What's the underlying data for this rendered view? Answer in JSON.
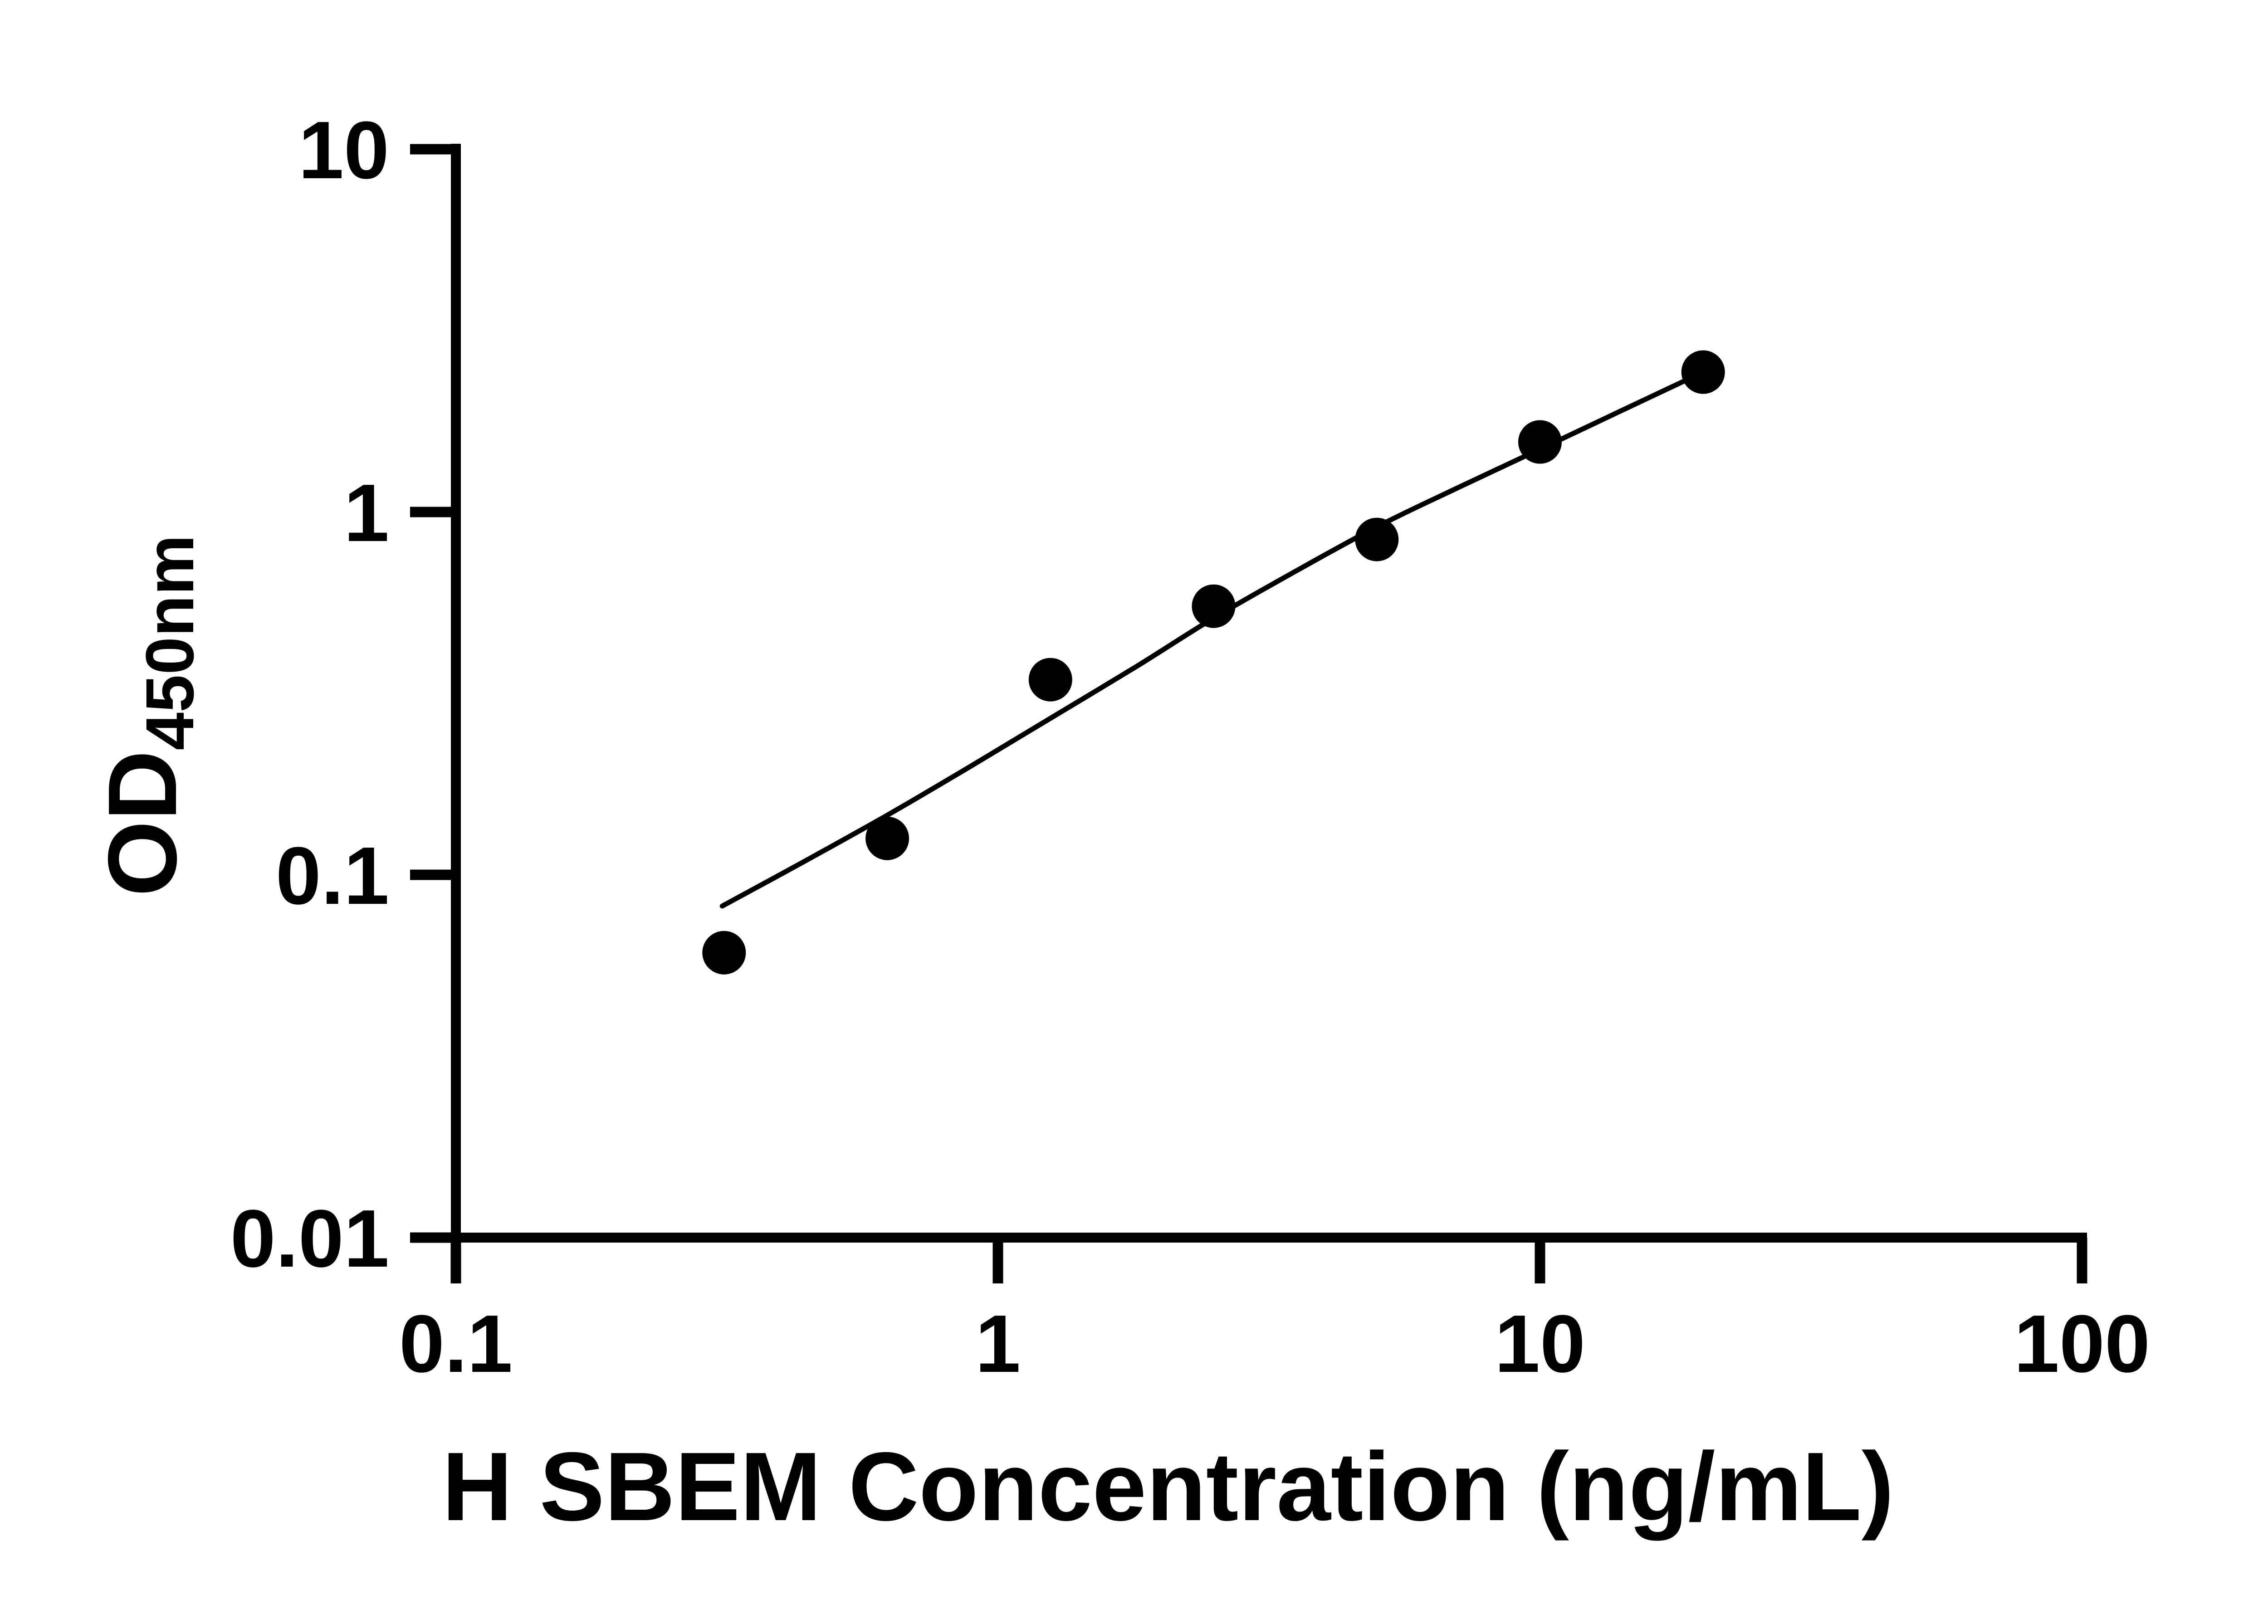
{
  "page": {
    "background": "#ffffff",
    "ink_color": "#000000"
  },
  "chart_data": {
    "type": "scatter",
    "title": "",
    "xlabel": "H SBEM Concentration (ng/mL)",
    "ylabel": {
      "main": "OD",
      "subscript": "450nm"
    },
    "grid": false,
    "legend": null,
    "x_axis": {
      "scale": "log",
      "min": 0.1,
      "max": 100,
      "ticks": [
        {
          "v": 0.1,
          "label": "0.1"
        },
        {
          "v": 1,
          "label": "1"
        },
        {
          "v": 10,
          "label": "10"
        },
        {
          "v": 100,
          "label": "100"
        }
      ]
    },
    "y_axis": {
      "scale": "log",
      "min": 0.01,
      "max": 10,
      "ticks": [
        {
          "v": 0.01,
          "label": "0.01"
        },
        {
          "v": 0.1,
          "label": "0.1"
        },
        {
          "v": 1,
          "label": "1"
        },
        {
          "v": 10,
          "label": "10"
        }
      ]
    },
    "series": [
      {
        "name": "standard-points",
        "marker": "filled-circle",
        "color": "#000000",
        "points": [
          [
            0.3125,
            0.061
          ],
          [
            0.625,
            0.126
          ],
          [
            1.25,
            0.345
          ],
          [
            2.5,
            0.55
          ],
          [
            5,
            0.84
          ],
          [
            10,
            1.56
          ],
          [
            20,
            2.43
          ]
        ]
      }
    ],
    "fit_curve": {
      "name": "4pl-fit-line",
      "color": "#000000",
      "points": [
        [
          0.31,
          0.082
        ],
        [
          0.44,
          0.109
        ],
        [
          0.625,
          0.146
        ],
        [
          0.88,
          0.197
        ],
        [
          1.25,
          0.27
        ],
        [
          1.8,
          0.375
        ],
        [
          2.5,
          0.51
        ],
        [
          3.5,
          0.68
        ],
        [
          5,
          0.91
        ],
        [
          7,
          1.16
        ],
        [
          10,
          1.49
        ],
        [
          14,
          1.89
        ],
        [
          20,
          2.43
        ]
      ]
    }
  }
}
